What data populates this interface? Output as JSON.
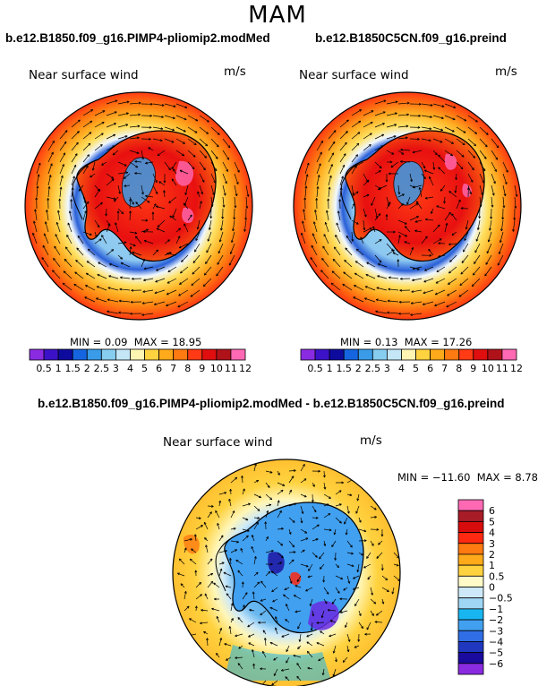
{
  "season": "MAM",
  "colors": {
    "seq_colorbar": [
      "#8a2be2",
      "#3b12c8",
      "#0d0b9e",
      "#1565e0",
      "#3a9ce8",
      "#87cdf0",
      "#c4e6f7",
      "#fff5b3",
      "#ffd23f",
      "#ffaa1a",
      "#ff7a10",
      "#ff3a14",
      "#e00e0e",
      "#b0121a",
      "#ff69b4"
    ],
    "diff_colorbar": [
      "#8a2be2",
      "#1a0b9e",
      "#2038c0",
      "#2f6ee6",
      "#41a0f0",
      "#18b6f0",
      "#9fd6f4",
      "#cde9f9",
      "#fffbc8",
      "#ffd23f",
      "#ffaa1a",
      "#ff7a10",
      "#ff2810",
      "#d80c0c",
      "#a81c28",
      "#ff69b4"
    ],
    "land_contour": "#000000",
    "arrow": "#000000"
  },
  "chart_data": [
    {
      "type": "heatmap",
      "projection": "polar-stereographic-south",
      "title": "b.e12.B1850.f09_g16.PIMP4-pliomip2.modMed",
      "variable": "Near surface wind",
      "units": "m/s",
      "min_label": "MIN =",
      "min": "0.09",
      "max_label": "MAX =",
      "max": "18.95",
      "colorbar_labels": [
        "0.5",
        "1",
        "1.5",
        "2",
        "2.5",
        "3",
        "4",
        "5",
        "6",
        "7",
        "8",
        "9",
        "10",
        "11",
        "12"
      ],
      "overlay": "wind vectors"
    },
    {
      "type": "heatmap",
      "projection": "polar-stereographic-south",
      "title": "b.e12.B1850C5CN.f09_g16.preind",
      "variable": "Near surface wind",
      "units": "m/s",
      "min_label": "MIN =",
      "min": "0.13",
      "max_label": "MAX =",
      "max": "17.26",
      "colorbar_labels": [
        "0.5",
        "1",
        "1.5",
        "2",
        "2.5",
        "3",
        "4",
        "5",
        "6",
        "7",
        "8",
        "9",
        "10",
        "11",
        "12"
      ],
      "overlay": "wind vectors"
    },
    {
      "type": "heatmap",
      "projection": "polar-stereographic-south",
      "title": "b.e12.B1850.f09_g16.PIMP4-pliomip2.modMed - b.e12.B1850C5CN.f09_g16.preind",
      "variable": "Near surface wind",
      "units": "m/s",
      "min_label": "MIN =",
      "min": "−11.60",
      "max_label": "MAX =",
      "max": "8.78",
      "colorbar_labels": [
        "6",
        "5",
        "4",
        "3",
        "2",
        "1",
        "0.5",
        "0",
        "−0.5",
        "−1",
        "−2",
        "−3",
        "−4",
        "−5",
        "−6"
      ],
      "overlay": "wind vector differences"
    }
  ]
}
